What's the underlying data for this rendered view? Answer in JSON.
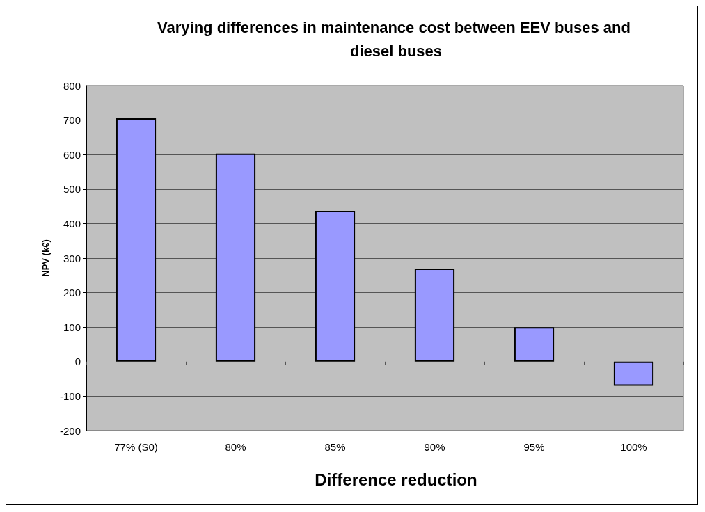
{
  "chart_data": {
    "type": "bar",
    "title": "Varying differences in maintenance cost between EEV buses and diesel buses",
    "xlabel": "Difference reduction",
    "ylabel": "NPV (k€)",
    "categories": [
      "77% (S0)",
      "80%",
      "85%",
      "90%",
      "95%",
      "100%"
    ],
    "values": [
      705,
      603,
      437,
      270,
      100,
      -70
    ],
    "color": "#9999ff",
    "ylim": [
      -200,
      800
    ],
    "yticks": [
      -200,
      -100,
      0,
      100,
      200,
      300,
      400,
      500,
      600,
      700,
      800
    ],
    "grid": "y"
  }
}
